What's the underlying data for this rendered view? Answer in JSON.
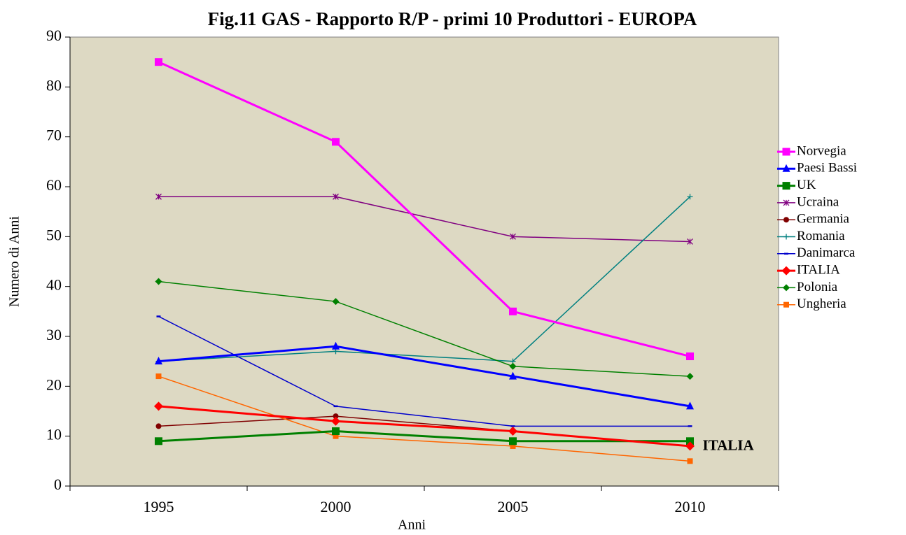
{
  "chart_data": {
    "type": "line",
    "title": "Fig.11 GAS - Rapporto R/P - primi 10 Produttori - EUROPA",
    "xlabel": "Anni",
    "ylabel": "Numero di Anni",
    "annotation": "ITALIA",
    "categories": [
      "1995",
      "2000",
      "2005",
      "2010"
    ],
    "ylim": [
      0,
      90
    ],
    "yticks": [
      0,
      10,
      20,
      30,
      40,
      50,
      60,
      70,
      80,
      90
    ],
    "grid": false,
    "legend": "right",
    "series": [
      {
        "name": "Norvegia",
        "color": "#ff00ff",
        "marker": "square",
        "width": 3,
        "values": [
          85,
          69,
          35,
          26
        ]
      },
      {
        "name": "Paesi Bassi",
        "color": "#0000ff",
        "marker": "triangle",
        "width": 3,
        "values": [
          25,
          28,
          22,
          16
        ]
      },
      {
        "name": "UK",
        "color": "#008000",
        "marker": "square",
        "width": 3,
        "values": [
          9,
          11,
          9,
          9
        ]
      },
      {
        "name": "Ucraina",
        "color": "#800080",
        "marker": "asterisk",
        "width": 1.5,
        "values": [
          58,
          58,
          50,
          49
        ]
      },
      {
        "name": "Germania",
        "color": "#800000",
        "marker": "circle",
        "width": 1.5,
        "values": [
          12,
          14,
          11,
          8
        ]
      },
      {
        "name": "Romania",
        "color": "#008080",
        "marker": "plus",
        "width": 1.5,
        "values": [
          25,
          27,
          25,
          58
        ]
      },
      {
        "name": "Danimarca",
        "color": "#0000cc",
        "marker": "dash",
        "width": 1.5,
        "values": [
          34,
          16,
          12,
          12
        ]
      },
      {
        "name": "ITALIA",
        "color": "#ff0000",
        "marker": "diamond",
        "width": 3,
        "values": [
          16,
          13,
          11,
          8
        ]
      },
      {
        "name": "Polonia",
        "color": "#008000",
        "marker": "diamond",
        "width": 1.5,
        "values": [
          41,
          37,
          24,
          22
        ]
      },
      {
        "name": "Ungheria",
        "color": "#ff6600",
        "marker": "square",
        "width": 1.5,
        "values": [
          22,
          10,
          8,
          5
        ]
      }
    ]
  }
}
